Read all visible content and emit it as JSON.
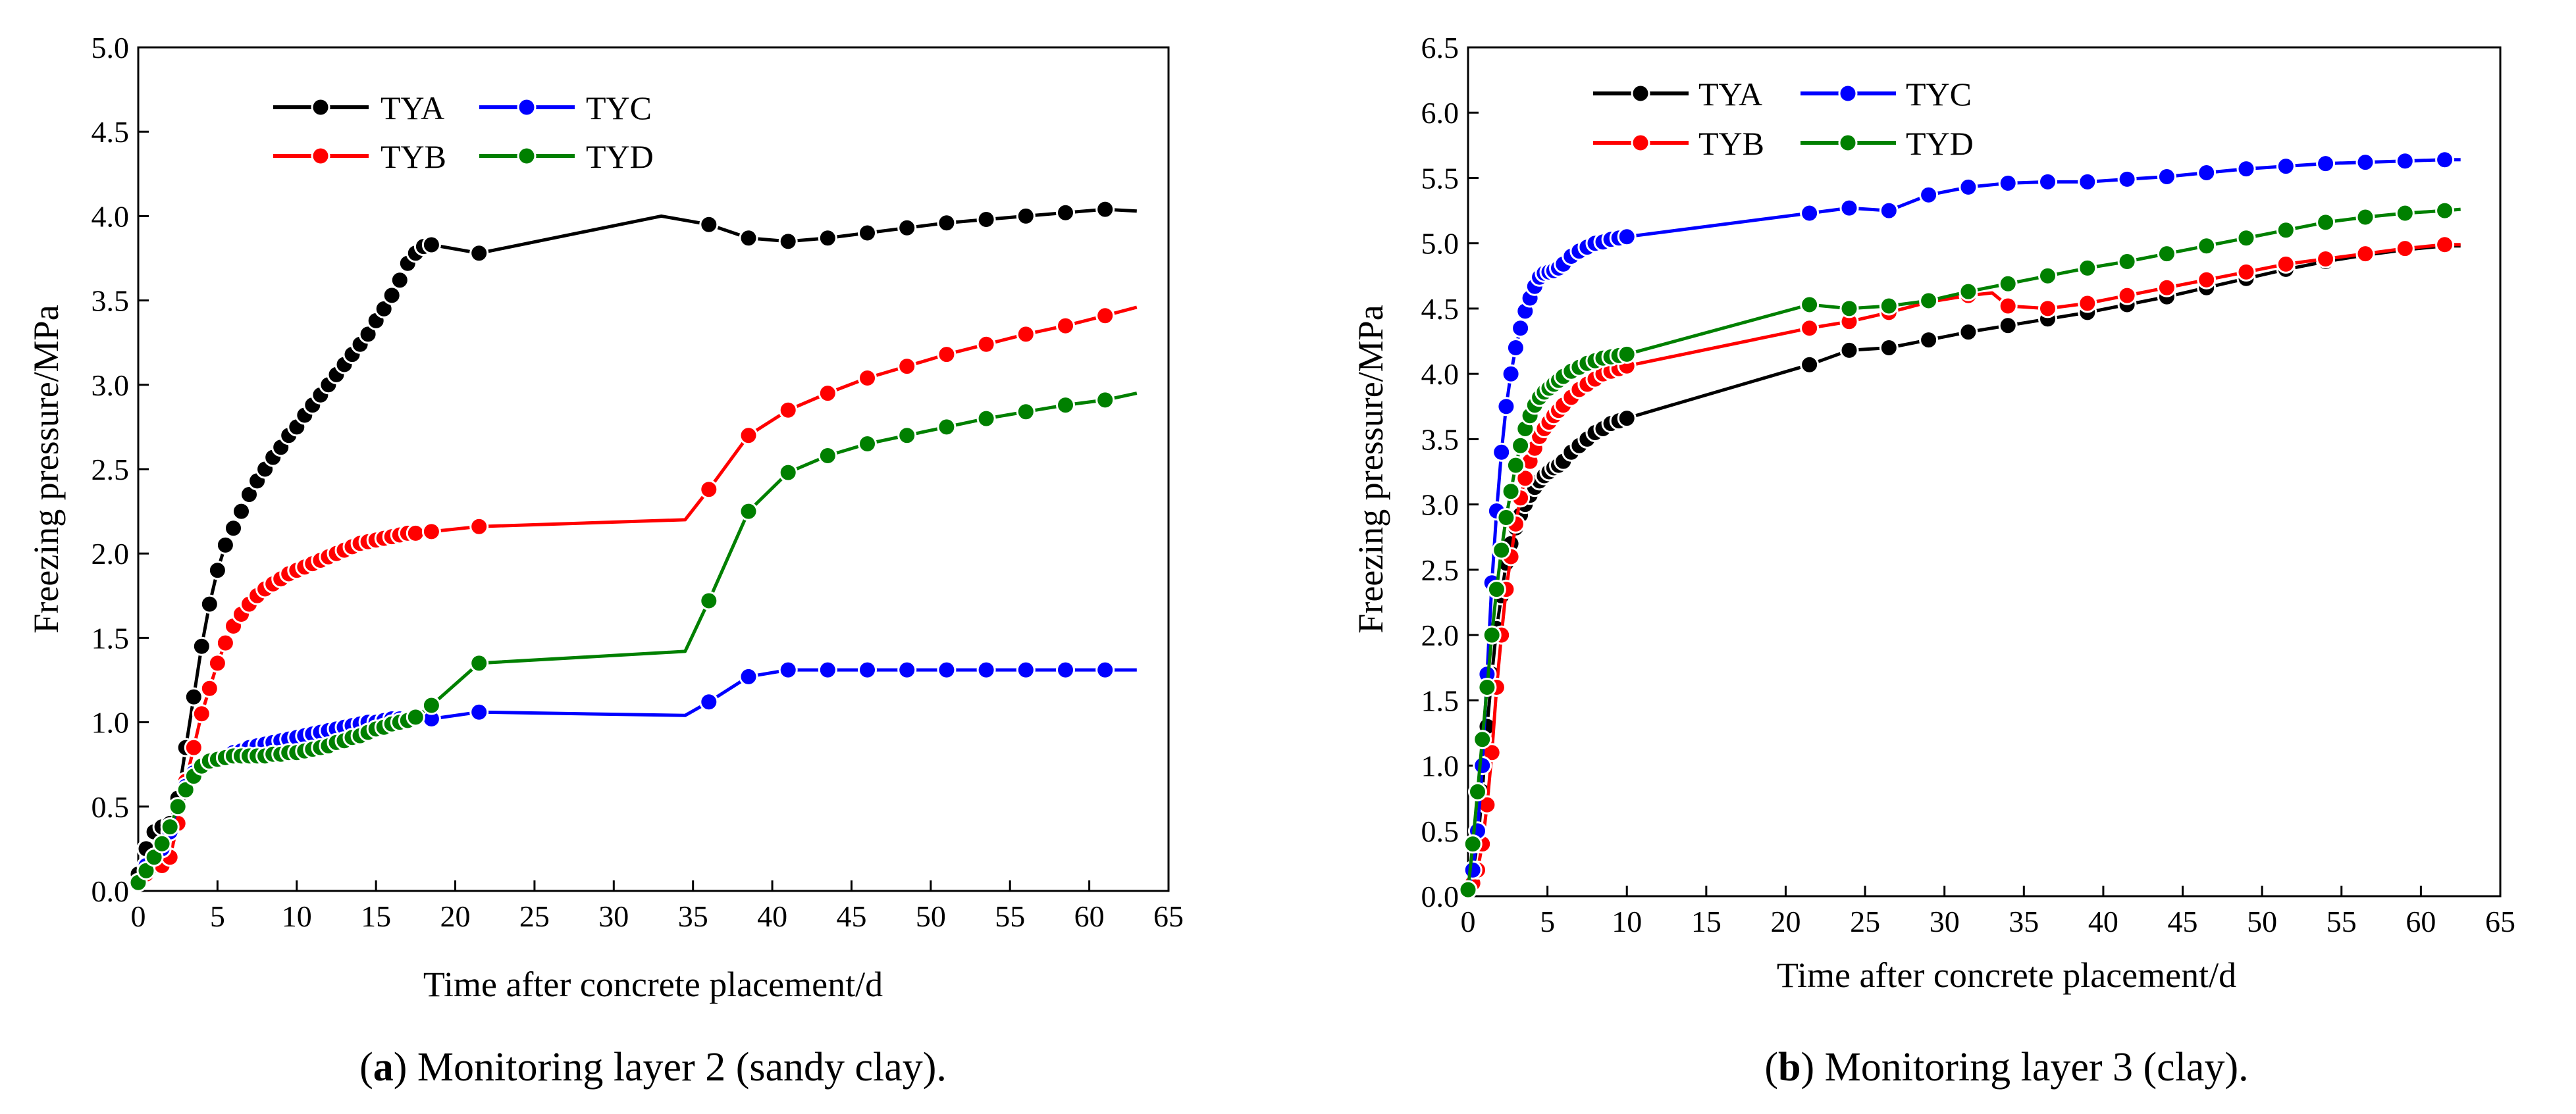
{
  "chart_data": [
    {
      "type": "line",
      "caption_letter": "a",
      "caption_text": ") Monitoring layer 2 (sandy clay).",
      "caption_open": "(",
      "xlabel": "Time after concrete placement/d",
      "ylabel": "Freezing pressure/MPa",
      "xlim": [
        0,
        65
      ],
      "ylim": [
        0,
        5.0
      ],
      "xticks": [
        "0",
        "5",
        "10",
        "15",
        "20",
        "25",
        "30",
        "35",
        "40",
        "45",
        "50",
        "55",
        "60",
        "65"
      ],
      "yticks": [
        "0.0",
        "0.5",
        "1.0",
        "1.5",
        "2.0",
        "2.5",
        "3.0",
        "3.5",
        "4.0",
        "4.5",
        "5.0"
      ],
      "series": [
        {
          "name": "TYA",
          "color": "#000000",
          "x": [
            0,
            0.5,
            1.0,
            1.5,
            2.0,
            2.5,
            3.0,
            3.5,
            4.0,
            4.5,
            5.0,
            5.5,
            6.0,
            6.5,
            7.0,
            7.5,
            8.0,
            8.5,
            9.0,
            9.5,
            10.0,
            10.5,
            11.0,
            11.5,
            12.0,
            12.5,
            13.0,
            13.5,
            14.0,
            14.5,
            15.0,
            15.5,
            16.0,
            16.5,
            17.0,
            17.5,
            18.0,
            18.5,
            21.5,
            33.0,
            36.0,
            38.5,
            41.0,
            43.5,
            46.0,
            48.5,
            51.0,
            53.5,
            56.0,
            58.5,
            61.0,
            63.0
          ],
          "y": [
            0.1,
            0.25,
            0.35,
            0.38,
            0.4,
            0.55,
            0.85,
            1.15,
            1.45,
            1.7,
            1.9,
            2.05,
            2.15,
            2.25,
            2.35,
            2.43,
            2.5,
            2.57,
            2.63,
            2.7,
            2.75,
            2.82,
            2.88,
            2.94,
            3.0,
            3.06,
            3.12,
            3.18,
            3.24,
            3.3,
            3.38,
            3.45,
            3.53,
            3.62,
            3.72,
            3.78,
            3.82,
            3.83,
            3.78,
            4.0,
            3.95,
            3.87,
            3.85,
            3.87,
            3.9,
            3.93,
            3.96,
            3.98,
            4.0,
            4.02,
            4.04,
            4.03
          ],
          "markers": "0-38,40-50"
        },
        {
          "name": "TYB",
          "color": "#ff0000",
          "x": [
            0,
            0.5,
            1.0,
            1.5,
            2.0,
            2.5,
            3.0,
            3.5,
            4.0,
            4.5,
            5.0,
            5.5,
            6.0,
            6.5,
            7.0,
            7.5,
            8.0,
            8.5,
            9.0,
            9.5,
            10.0,
            10.5,
            11.0,
            11.5,
            12.0,
            12.5,
            13.0,
            13.5,
            14.0,
            14.5,
            15.0,
            15.5,
            16.0,
            16.5,
            17.0,
            17.5,
            18.5,
            21.5,
            34.5,
            36.0,
            38.5,
            41.0,
            43.5,
            46.0,
            48.5,
            51.0,
            53.5,
            56.0,
            58.5,
            61.0,
            63.0
          ],
          "y": [
            0.05,
            0.1,
            0.15,
            0.15,
            0.2,
            0.4,
            0.65,
            0.85,
            1.05,
            1.2,
            1.35,
            1.47,
            1.57,
            1.64,
            1.7,
            1.75,
            1.79,
            1.82,
            1.85,
            1.88,
            1.9,
            1.92,
            1.94,
            1.96,
            1.98,
            2.0,
            2.02,
            2.04,
            2.06,
            2.07,
            2.08,
            2.09,
            2.1,
            2.11,
            2.12,
            2.12,
            2.13,
            2.16,
            2.2,
            2.38,
            2.7,
            2.85,
            2.95,
            3.04,
            3.11,
            3.18,
            3.24,
            3.3,
            3.35,
            3.41,
            3.46
          ],
          "markers": "0-37,39-49"
        },
        {
          "name": "TYC",
          "color": "#0000ff",
          "x": [
            0,
            0.5,
            1.0,
            1.5,
            2.0,
            2.5,
            3.0,
            3.5,
            4.0,
            4.5,
            5.0,
            5.5,
            6.0,
            6.5,
            7.0,
            7.5,
            8.0,
            8.5,
            9.0,
            9.5,
            10.0,
            10.5,
            11.0,
            11.5,
            12.0,
            12.5,
            13.0,
            13.5,
            14.0,
            14.5,
            15.0,
            15.5,
            16.0,
            16.5,
            17.0,
            17.5,
            18.5,
            21.5,
            34.5,
            36.0,
            38.5,
            41.0,
            43.5,
            46.0,
            48.5,
            51.0,
            53.5,
            56.0,
            58.5,
            61.0,
            63.0
          ],
          "y": [
            0.05,
            0.15,
            0.2,
            0.25,
            0.35,
            0.5,
            0.62,
            0.7,
            0.75,
            0.77,
            0.78,
            0.8,
            0.82,
            0.83,
            0.85,
            0.86,
            0.87,
            0.88,
            0.89,
            0.9,
            0.91,
            0.92,
            0.93,
            0.94,
            0.95,
            0.96,
            0.97,
            0.98,
            0.99,
            1.0,
            1.0,
            1.01,
            1.02,
            1.02,
            1.02,
            1.02,
            1.02,
            1.06,
            1.04,
            1.12,
            1.27,
            1.31,
            1.31,
            1.31,
            1.31,
            1.31,
            1.31,
            1.31,
            1.31,
            1.31,
            1.31
          ],
          "markers": "0-37,39-49"
        },
        {
          "name": "TYD",
          "color": "#008000",
          "x": [
            0,
            0.5,
            1.0,
            1.5,
            2.0,
            2.5,
            3.0,
            3.5,
            4.0,
            4.5,
            5.0,
            5.5,
            6.0,
            6.5,
            7.0,
            7.5,
            8.0,
            8.5,
            9.0,
            9.5,
            10.0,
            10.5,
            11.0,
            11.5,
            12.0,
            12.5,
            13.0,
            13.5,
            14.0,
            14.5,
            15.0,
            15.5,
            16.0,
            16.5,
            17.0,
            17.5,
            18.5,
            21.5,
            34.5,
            36.0,
            38.5,
            41.0,
            43.5,
            46.0,
            48.5,
            51.0,
            53.5,
            56.0,
            58.5,
            61.0,
            63.0
          ],
          "y": [
            0.05,
            0.12,
            0.2,
            0.28,
            0.38,
            0.5,
            0.6,
            0.68,
            0.74,
            0.77,
            0.78,
            0.79,
            0.8,
            0.8,
            0.8,
            0.8,
            0.8,
            0.81,
            0.81,
            0.82,
            0.82,
            0.83,
            0.84,
            0.85,
            0.86,
            0.88,
            0.89,
            0.91,
            0.92,
            0.94,
            0.96,
            0.97,
            0.99,
            1.0,
            1.01,
            1.03,
            1.1,
            1.35,
            1.42,
            1.72,
            2.25,
            2.48,
            2.58,
            2.65,
            2.7,
            2.75,
            2.8,
            2.84,
            2.88,
            2.91,
            2.95
          ],
          "markers": "0-37,39-49"
        }
      ]
    },
    {
      "type": "line",
      "caption_letter": "b",
      "caption_text": ") Monitoring layer 3 (clay).",
      "caption_open": "(",
      "xlabel": "Time after concrete placement/d",
      "ylabel": "Freezing pressure/MPa",
      "xlim": [
        0,
        65
      ],
      "ylim": [
        0,
        6.5
      ],
      "xticks": [
        "0",
        "5",
        "10",
        "15",
        "20",
        "25",
        "30",
        "35",
        "40",
        "45",
        "50",
        "55",
        "60",
        "65"
      ],
      "yticks": [
        "0.0",
        "0.5",
        "1.0",
        "1.5",
        "2.0",
        "2.5",
        "3.0",
        "3.5",
        "4.0",
        "4.5",
        "5.0",
        "5.5",
        "6.0",
        "6.5"
      ],
      "series": [
        {
          "name": "TYA",
          "color": "#000000",
          "x": [
            0,
            0.3,
            0.6,
            0.9,
            1.2,
            1.5,
            1.8,
            2.1,
            2.4,
            2.7,
            3.0,
            3.3,
            3.6,
            3.9,
            4.2,
            4.5,
            4.8,
            5.1,
            5.4,
            5.7,
            6.0,
            6.5,
            7.0,
            7.5,
            8.0,
            8.5,
            9.0,
            9.5,
            10.0,
            21.5,
            24.0,
            26.5,
            29.0,
            31.5,
            34.0,
            36.5,
            39.0,
            41.5,
            44.0,
            46.5,
            49.0,
            51.5,
            54.0,
            56.5,
            59.0,
            61.5,
            62.5
          ],
          "y": [
            0.05,
            0.2,
            0.4,
            0.8,
            1.3,
            1.7,
            2.05,
            2.3,
            2.55,
            2.7,
            2.82,
            2.92,
            3.0,
            3.07,
            3.13,
            3.18,
            3.22,
            3.25,
            3.28,
            3.3,
            3.33,
            3.4,
            3.45,
            3.5,
            3.55,
            3.58,
            3.62,
            3.64,
            3.66,
            4.07,
            4.18,
            4.2,
            4.26,
            4.32,
            4.37,
            4.42,
            4.47,
            4.53,
            4.59,
            4.66,
            4.73,
            4.8,
            4.86,
            4.91,
            4.95,
            4.98,
            4.98
          ],
          "markers": "0-28,29-45"
        },
        {
          "name": "TYB",
          "color": "#ff0000",
          "x": [
            0,
            0.3,
            0.6,
            0.9,
            1.2,
            1.5,
            1.8,
            2.1,
            2.4,
            2.7,
            3.0,
            3.3,
            3.6,
            3.9,
            4.2,
            4.5,
            4.8,
            5.1,
            5.4,
            5.7,
            6.0,
            6.5,
            7.0,
            7.5,
            8.0,
            8.5,
            9.0,
            9.5,
            10.0,
            21.5,
            24.0,
            26.5,
            29.0,
            31.5,
            33.0,
            34.0,
            36.5,
            39.0,
            41.5,
            44.0,
            46.5,
            49.0,
            51.5,
            54.0,
            56.5,
            59.0,
            61.5,
            62.5
          ],
          "y": [
            0.05,
            0.1,
            0.2,
            0.4,
            0.7,
            1.1,
            1.6,
            2.0,
            2.35,
            2.6,
            2.85,
            3.05,
            3.2,
            3.33,
            3.43,
            3.52,
            3.58,
            3.63,
            3.68,
            3.72,
            3.76,
            3.82,
            3.88,
            3.92,
            3.96,
            4.0,
            4.02,
            4.04,
            4.06,
            4.35,
            4.4,
            4.47,
            4.55,
            4.6,
            4.62,
            4.52,
            4.5,
            4.54,
            4.6,
            4.66,
            4.72,
            4.78,
            4.84,
            4.88,
            4.92,
            4.96,
            4.99,
            4.99
          ],
          "markers": "0-33,35-46"
        },
        {
          "name": "TYC",
          "color": "#0000ff",
          "x": [
            0,
            0.3,
            0.6,
            0.9,
            1.2,
            1.5,
            1.8,
            2.1,
            2.4,
            2.7,
            3.0,
            3.3,
            3.6,
            3.9,
            4.2,
            4.5,
            4.8,
            5.1,
            5.4,
            5.7,
            6.0,
            6.5,
            7.0,
            7.5,
            8.0,
            8.5,
            9.0,
            9.5,
            10.0,
            21.5,
            24.0,
            26.5,
            29.0,
            31.5,
            34.0,
            36.5,
            39.0,
            41.5,
            44.0,
            46.5,
            49.0,
            51.5,
            54.0,
            56.5,
            59.0,
            61.5,
            62.5
          ],
          "y": [
            0.05,
            0.2,
            0.5,
            1.0,
            1.7,
            2.4,
            2.95,
            3.4,
            3.75,
            4.0,
            4.2,
            4.35,
            4.48,
            4.58,
            4.67,
            4.74,
            4.77,
            4.78,
            4.79,
            4.81,
            4.84,
            4.9,
            4.94,
            4.97,
            5.0,
            5.01,
            5.03,
            5.04,
            5.05,
            5.23,
            5.27,
            5.25,
            5.37,
            5.43,
            5.46,
            5.47,
            5.47,
            5.49,
            5.51,
            5.54,
            5.57,
            5.59,
            5.61,
            5.62,
            5.63,
            5.64,
            5.64
          ],
          "markers": "0-28,29-45"
        },
        {
          "name": "TYD",
          "color": "#008000",
          "x": [
            0,
            0.3,
            0.6,
            0.9,
            1.2,
            1.5,
            1.8,
            2.1,
            2.4,
            2.7,
            3.0,
            3.3,
            3.6,
            3.9,
            4.2,
            4.5,
            4.8,
            5.1,
            5.4,
            5.7,
            6.0,
            6.5,
            7.0,
            7.5,
            8.0,
            8.5,
            9.0,
            9.5,
            10.0,
            21.5,
            24.0,
            26.5,
            29.0,
            31.5,
            34.0,
            36.5,
            39.0,
            41.5,
            44.0,
            46.5,
            49.0,
            51.5,
            54.0,
            56.5,
            59.0,
            61.5,
            62.5
          ],
          "y": [
            0.05,
            0.4,
            0.8,
            1.2,
            1.6,
            2.0,
            2.35,
            2.65,
            2.9,
            3.1,
            3.3,
            3.45,
            3.58,
            3.68,
            3.76,
            3.82,
            3.86,
            3.89,
            3.92,
            3.95,
            3.98,
            4.02,
            4.05,
            4.08,
            4.1,
            4.12,
            4.13,
            4.14,
            4.15,
            4.53,
            4.5,
            4.52,
            4.56,
            4.63,
            4.69,
            4.75,
            4.81,
            4.86,
            4.92,
            4.98,
            5.04,
            5.1,
            5.16,
            5.2,
            5.23,
            5.25,
            5.26
          ],
          "markers": "0-28,29-45"
        }
      ]
    }
  ]
}
